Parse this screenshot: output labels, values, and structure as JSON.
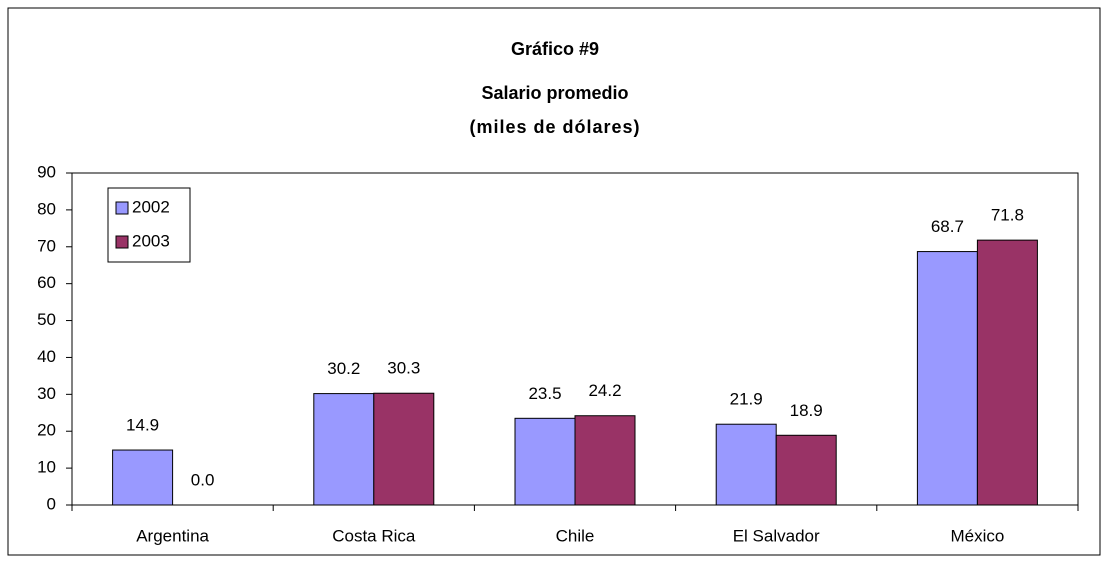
{
  "chart_data": {
    "type": "bar",
    "title": "Gráfico #9",
    "subtitle": "Salario promedio",
    "unit": "(miles de dólares)",
    "categories": [
      "Argentina",
      "Costa Rica",
      "Chile",
      "El Salvador",
      "México"
    ],
    "series": [
      {
        "name": "2002",
        "color": "#9999ff",
        "values": [
          14.9,
          30.2,
          23.5,
          21.9,
          68.7
        ],
        "value_labels": [
          "14.9",
          "30.2",
          "23.5",
          "21.9",
          "68.7"
        ]
      },
      {
        "name": "2003",
        "color": "#993366",
        "values": [
          0,
          30.3,
          24.2,
          18.9,
          71.8
        ],
        "value_labels": [
          "0.0",
          "30.3",
          "24.2",
          "18.9",
          "71.8"
        ]
      }
    ],
    "ylim": [
      0,
      90
    ],
    "yticks": [
      0,
      10,
      20,
      30,
      40,
      50,
      60,
      70,
      80,
      90
    ],
    "grid": false,
    "legend": "top-left"
  }
}
